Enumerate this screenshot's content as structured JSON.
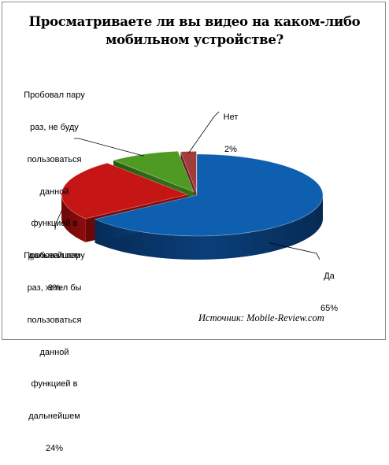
{
  "chart_data": {
    "type": "pie",
    "title": [
      "Просматриваете ли вы видео на каком-либо",
      "мобильном устройстве?"
    ],
    "slices": [
      {
        "label": [
          "Да"
        ],
        "value": 65,
        "value_label": "65%",
        "color": "#0f5fb0"
      },
      {
        "label": [
          "Пробовал пару",
          "раз, хотел бы",
          "пользоваться",
          "данной",
          "функцией в",
          "дальнейшем"
        ],
        "value": 24,
        "value_label": "24%",
        "color": "#c51515"
      },
      {
        "label": [
          "Пробовал пару",
          "раз, не буду",
          "пользоваться",
          "данной",
          "функцией в",
          "дальнейшем"
        ],
        "value": 9,
        "value_label": "9%",
        "color": "#4e9a22"
      },
      {
        "label": [
          "Нет"
        ],
        "value": 2,
        "value_label": "2%",
        "color": "#a23c3c"
      }
    ],
    "source": "Источник: Mobile-Review.com",
    "style": "3d-exploded"
  }
}
